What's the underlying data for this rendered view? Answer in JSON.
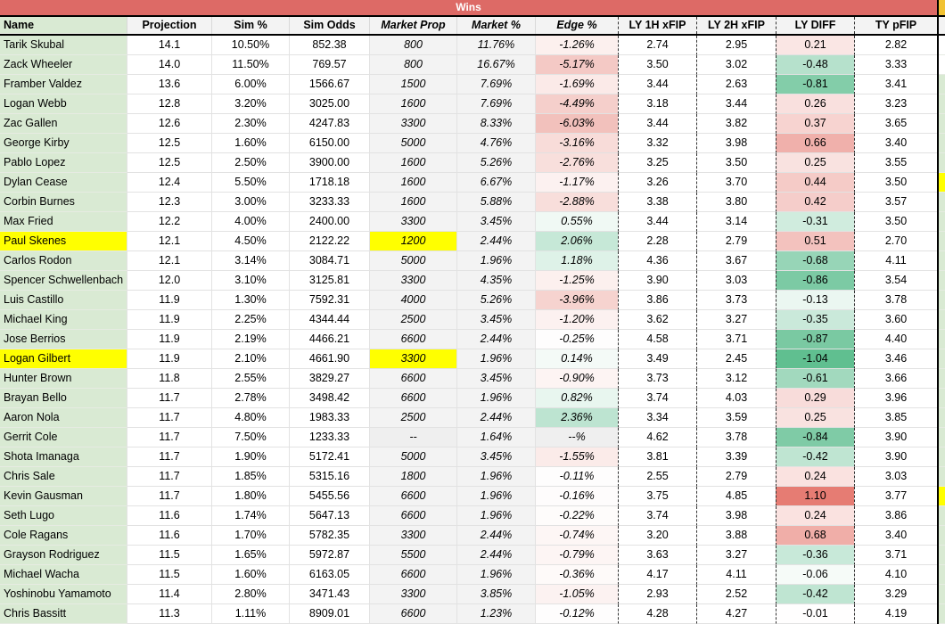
{
  "banner": {
    "title": "Wins"
  },
  "colors": {
    "banner_bg": "#dd6a66",
    "header_bg": "#f3f3f3",
    "name_green": "#d9ead3",
    "highlight_yellow": "#ffff00",
    "market_col_gray": "#f3f3f3",
    "na_gray": "#efefef",
    "adjacent_banner_gold": "#f1c232",
    "diff_red_max": "#e67c73",
    "diff_green_max": "#57bb8a"
  },
  "columns": [
    {
      "id": "name",
      "label": "Name"
    },
    {
      "id": "projection",
      "label": "Projection"
    },
    {
      "id": "sim_pct",
      "label": "Sim %"
    },
    {
      "id": "sim_odds",
      "label": "Sim Odds"
    },
    {
      "id": "market_prop",
      "label": "Market Prop"
    },
    {
      "id": "market_pct",
      "label": "Market %"
    },
    {
      "id": "edge_pct",
      "label": "Edge %"
    },
    {
      "id": "ly_1h_xfip",
      "label": "LY 1H xFIP"
    },
    {
      "id": "ly_2h_xfip",
      "label": "LY 2H xFIP"
    },
    {
      "id": "ly_diff",
      "label": "LY DIFF"
    },
    {
      "id": "ty_pfip",
      "label": "TY pFIP"
    }
  ],
  "rows": [
    {
      "name": "Tarik Skubal",
      "projection": "14.1",
      "sim_pct": "10.50%",
      "sim_odds": "852.38",
      "market_prop": "800",
      "market_pct": "11.76%",
      "edge_pct": "-1.26%",
      "ly_1h_xfip": "2.74",
      "ly_2h_xfip": "2.95",
      "ly_diff": "0.21",
      "ty_pfip": "2.82",
      "edge_bg": "#fcf0ee",
      "diff_bg": "#fae6e4"
    },
    {
      "name": "Zack Wheeler",
      "projection": "14.0",
      "sim_pct": "11.50%",
      "sim_odds": "769.57",
      "market_prop": "800",
      "market_pct": "16.67%",
      "edge_pct": "-5.17%",
      "ly_1h_xfip": "3.50",
      "ly_2h_xfip": "3.02",
      "ly_diff": "-0.48",
      "ty_pfip": "3.33",
      "edge_bg": "#f4c9c5",
      "diff_bg": "#b6e1cc"
    },
    {
      "name": "Framber Valdez",
      "projection": "13.6",
      "sim_pct": "6.00%",
      "sim_odds": "1566.67",
      "market_prop": "1500",
      "market_pct": "7.69%",
      "edge_pct": "-1.69%",
      "ly_1h_xfip": "3.44",
      "ly_2h_xfip": "2.63",
      "ly_diff": "-0.81",
      "ty_pfip": "3.41",
      "edge_bg": "#fbeae8",
      "diff_bg": "#83cda9"
    },
    {
      "name": "Logan Webb",
      "projection": "12.8",
      "sim_pct": "3.20%",
      "sim_odds": "3025.00",
      "market_prop": "1600",
      "market_pct": "7.69%",
      "edge_pct": "-4.49%",
      "ly_1h_xfip": "3.18",
      "ly_2h_xfip": "3.44",
      "ly_diff": "0.26",
      "ty_pfip": "3.23",
      "edge_bg": "#f5cfcb",
      "diff_bg": "#f9e0de"
    },
    {
      "name": "Zac Gallen",
      "projection": "12.6",
      "sim_pct": "2.30%",
      "sim_odds": "4247.83",
      "market_prop": "3300",
      "market_pct": "8.33%",
      "edge_pct": "-6.03%",
      "ly_1h_xfip": "3.44",
      "ly_2h_xfip": "3.82",
      "ly_diff": "0.37",
      "ty_pfip": "3.65",
      "edge_bg": "#f2c1bc",
      "diff_bg": "#f7d3d0"
    },
    {
      "name": "George Kirby",
      "projection": "12.5",
      "sim_pct": "1.60%",
      "sim_odds": "6150.00",
      "market_prop": "5000",
      "market_pct": "4.76%",
      "edge_pct": "-3.16%",
      "ly_1h_xfip": "3.32",
      "ly_2h_xfip": "3.98",
      "ly_diff": "0.66",
      "ty_pfip": "3.40",
      "edge_bg": "#f8dcd9",
      "diff_bg": "#f0b0ab"
    },
    {
      "name": "Pablo Lopez",
      "projection": "12.5",
      "sim_pct": "2.50%",
      "sim_odds": "3900.00",
      "market_prop": "1600",
      "market_pct": "5.26%",
      "edge_pct": "-2.76%",
      "ly_1h_xfip": "3.25",
      "ly_2h_xfip": "3.50",
      "ly_diff": "0.25",
      "ty_pfip": "3.55",
      "edge_bg": "#f8dfdc",
      "diff_bg": "#f9e2e0"
    },
    {
      "name": "Dylan Cease",
      "projection": "12.4",
      "sim_pct": "5.50%",
      "sim_odds": "1718.18",
      "market_prop": "1600",
      "market_pct": "6.67%",
      "edge_pct": "-1.17%",
      "ly_1h_xfip": "3.26",
      "ly_2h_xfip": "3.70",
      "ly_diff": "0.44",
      "ty_pfip": "3.50",
      "edge_bg": "#fcf1f0",
      "diff_bg": "#f5cbc7"
    },
    {
      "name": "Corbin Burnes",
      "projection": "12.3",
      "sim_pct": "3.00%",
      "sim_odds": "3233.33",
      "market_prop": "1600",
      "market_pct": "5.88%",
      "edge_pct": "-2.88%",
      "ly_1h_xfip": "3.38",
      "ly_2h_xfip": "3.80",
      "ly_diff": "0.42",
      "ty_pfip": "3.57",
      "edge_bg": "#f8dedb",
      "diff_bg": "#f5cdca"
    },
    {
      "name": "Max Fried",
      "projection": "12.2",
      "sim_pct": "4.00%",
      "sim_odds": "2400.00",
      "market_prop": "3300",
      "market_pct": "3.45%",
      "edge_pct": "0.55%",
      "ly_1h_xfip": "3.44",
      "ly_2h_xfip": "3.14",
      "ly_diff": "-0.31",
      "ty_pfip": "3.50",
      "edge_bg": "#f0f9f4",
      "diff_bg": "#d0ecde"
    },
    {
      "name": "Paul Skenes",
      "projection": "12.1",
      "sim_pct": "4.50%",
      "sim_odds": "2122.22",
      "market_prop": "1200",
      "market_pct": "2.44%",
      "edge_pct": "2.06%",
      "ly_1h_xfip": "2.28",
      "ly_2h_xfip": "2.79",
      "ly_diff": "0.51",
      "ty_pfip": "2.70",
      "edge_bg": "#c6e8d7",
      "diff_bg": "#f3c2be",
      "name_highlight": true,
      "prop_highlight": true
    },
    {
      "name": "Carlos Rodon",
      "projection": "12.1",
      "sim_pct": "3.14%",
      "sim_odds": "3084.71",
      "market_prop": "5000",
      "market_pct": "1.96%",
      "edge_pct": "1.18%",
      "ly_1h_xfip": "4.36",
      "ly_2h_xfip": "3.67",
      "ly_diff": "-0.68",
      "ty_pfip": "4.11",
      "edge_bg": "#def2e8",
      "diff_bg": "#97d5b7"
    },
    {
      "name": "Spencer Schwellenbach",
      "projection": "12.0",
      "sim_pct": "3.10%",
      "sim_odds": "3125.81",
      "market_prop": "3300",
      "market_pct": "4.35%",
      "edge_pct": "-1.25%",
      "ly_1h_xfip": "3.90",
      "ly_2h_xfip": "3.03",
      "ly_diff": "-0.86",
      "ty_pfip": "3.54",
      "edge_bg": "#fcf0ee",
      "diff_bg": "#7ccaa4"
    },
    {
      "name": "Luis Castillo",
      "projection": "11.9",
      "sim_pct": "1.30%",
      "sim_odds": "7592.31",
      "market_prop": "4000",
      "market_pct": "5.26%",
      "edge_pct": "-3.96%",
      "ly_1h_xfip": "3.86",
      "ly_2h_xfip": "3.73",
      "ly_diff": "-0.13",
      "ty_pfip": "3.78",
      "edge_bg": "#f6d3cf",
      "diff_bg": "#ebf7f1"
    },
    {
      "name": "Michael King",
      "projection": "11.9",
      "sim_pct": "2.25%",
      "sim_odds": "4344.44",
      "market_prop": "2500",
      "market_pct": "3.45%",
      "edge_pct": "-1.20%",
      "ly_1h_xfip": "3.62",
      "ly_2h_xfip": "3.27",
      "ly_diff": "-0.35",
      "ty_pfip": "3.60",
      "edge_bg": "#fcf1f0",
      "diff_bg": "#cae9da"
    },
    {
      "name": "Jose Berrios",
      "projection": "11.9",
      "sim_pct": "2.19%",
      "sim_odds": "4466.21",
      "market_prop": "6600",
      "market_pct": "2.44%",
      "edge_pct": "-0.25%",
      "ly_1h_xfip": "4.58",
      "ly_2h_xfip": "3.71",
      "ly_diff": "-0.87",
      "ty_pfip": "4.40",
      "edge_bg": "#fefdfd",
      "diff_bg": "#7ac9a2"
    },
    {
      "name": "Logan Gilbert",
      "projection": "11.9",
      "sim_pct": "2.10%",
      "sim_odds": "4661.90",
      "market_prop": "3300",
      "market_pct": "1.96%",
      "edge_pct": "0.14%",
      "ly_1h_xfip": "3.49",
      "ly_2h_xfip": "2.45",
      "ly_diff": "-1.04",
      "ty_pfip": "3.46",
      "edge_bg": "#f4faf7",
      "diff_bg": "#60bf90",
      "name_highlight": true,
      "prop_highlight": true
    },
    {
      "name": "Hunter Brown",
      "projection": "11.8",
      "sim_pct": "2.55%",
      "sim_odds": "3829.27",
      "market_prop": "6600",
      "market_pct": "3.45%",
      "edge_pct": "-0.90%",
      "ly_1h_xfip": "3.73",
      "ly_2h_xfip": "3.12",
      "ly_diff": "-0.61",
      "ty_pfip": "3.66",
      "edge_bg": "#fdf4f3",
      "diff_bg": "#a2d9be"
    },
    {
      "name": "Brayan Bello",
      "projection": "11.7",
      "sim_pct": "2.78%",
      "sim_odds": "3498.42",
      "market_prop": "6600",
      "market_pct": "1.96%",
      "edge_pct": "0.82%",
      "ly_1h_xfip": "3.74",
      "ly_2h_xfip": "4.03",
      "ly_diff": "0.29",
      "ty_pfip": "3.96",
      "edge_bg": "#e8f6ef",
      "diff_bg": "#f8dcda"
    },
    {
      "name": "Aaron Nola",
      "projection": "11.7",
      "sim_pct": "4.80%",
      "sim_odds": "1983.33",
      "market_prop": "2500",
      "market_pct": "2.44%",
      "edge_pct": "2.36%",
      "ly_1h_xfip": "3.34",
      "ly_2h_xfip": "3.59",
      "ly_diff": "0.25",
      "ty_pfip": "3.85",
      "edge_bg": "#bde4d1",
      "diff_bg": "#f9e2e0"
    },
    {
      "name": "Gerrit Cole",
      "projection": "11.7",
      "sim_pct": "7.50%",
      "sim_odds": "1233.33",
      "market_prop": "--",
      "market_pct": "1.64%",
      "edge_pct": "--%",
      "ly_1h_xfip": "4.62",
      "ly_2h_xfip": "3.78",
      "ly_diff": "-0.84",
      "ty_pfip": "3.90",
      "edge_bg": "#efefef",
      "diff_bg": "#7fcba6",
      "prop_bg": "#efefef"
    },
    {
      "name": "Shota Imanaga",
      "projection": "11.7",
      "sim_pct": "1.90%",
      "sim_odds": "5172.41",
      "market_prop": "5000",
      "market_pct": "3.45%",
      "edge_pct": "-1.55%",
      "ly_1h_xfip": "3.81",
      "ly_2h_xfip": "3.39",
      "ly_diff": "-0.42",
      "ty_pfip": "3.90",
      "edge_bg": "#fbebe9",
      "diff_bg": "#bfe5d2"
    },
    {
      "name": "Chris Sale",
      "projection": "11.7",
      "sim_pct": "1.85%",
      "sim_odds": "5315.16",
      "market_prop": "1800",
      "market_pct": "1.96%",
      "edge_pct": "-0.11%",
      "ly_1h_xfip": "2.55",
      "ly_2h_xfip": "2.79",
      "ly_diff": "0.24",
      "ty_pfip": "3.03",
      "edge_bg": "#fefdfd",
      "diff_bg": "#fae2e0"
    },
    {
      "name": "Kevin Gausman",
      "projection": "11.7",
      "sim_pct": "1.80%",
      "sim_odds": "5455.56",
      "market_prop": "6600",
      "market_pct": "1.96%",
      "edge_pct": "-0.16%",
      "ly_1h_xfip": "3.75",
      "ly_2h_xfip": "4.85",
      "ly_diff": "1.10",
      "ty_pfip": "3.77",
      "edge_bg": "#fefcfc",
      "diff_bg": "#e67c73"
    },
    {
      "name": "Seth Lugo",
      "projection": "11.6",
      "sim_pct": "1.74%",
      "sim_odds": "5647.13",
      "market_prop": "6600",
      "market_pct": "1.96%",
      "edge_pct": "-0.22%",
      "ly_1h_xfip": "3.74",
      "ly_2h_xfip": "3.98",
      "ly_diff": "0.24",
      "ty_pfip": "3.86",
      "edge_bg": "#fefcfb",
      "diff_bg": "#fae2e0"
    },
    {
      "name": "Cole Ragans",
      "projection": "11.6",
      "sim_pct": "1.70%",
      "sim_odds": "5782.35",
      "market_prop": "3300",
      "market_pct": "2.44%",
      "edge_pct": "-0.74%",
      "ly_1h_xfip": "3.20",
      "ly_2h_xfip": "3.88",
      "ly_diff": "0.68",
      "ty_pfip": "3.40",
      "edge_bg": "#fdf6f5",
      "diff_bg": "#f0aea8"
    },
    {
      "name": "Grayson Rodriguez",
      "projection": "11.5",
      "sim_pct": "1.65%",
      "sim_odds": "5972.87",
      "market_prop": "5500",
      "market_pct": "2.44%",
      "edge_pct": "-0.79%",
      "ly_1h_xfip": "3.63",
      "ly_2h_xfip": "3.27",
      "ly_diff": "-0.36",
      "ty_pfip": "3.71",
      "edge_bg": "#fdf5f4",
      "diff_bg": "#c8e9d9"
    },
    {
      "name": "Michael Wacha",
      "projection": "11.5",
      "sim_pct": "1.60%",
      "sim_odds": "6163.05",
      "market_prop": "6600",
      "market_pct": "1.96%",
      "edge_pct": "-0.36%",
      "ly_1h_xfip": "4.17",
      "ly_2h_xfip": "4.11",
      "ly_diff": "-0.06",
      "ty_pfip": "4.10",
      "edge_bg": "#fefaf9",
      "diff_bg": "#f6fbf8"
    },
    {
      "name": "Yoshinobu Yamamoto",
      "projection": "11.4",
      "sim_pct": "2.80%",
      "sim_odds": "3471.43",
      "market_prop": "3300",
      "market_pct": "3.85%",
      "edge_pct": "-1.05%",
      "ly_1h_xfip": "2.93",
      "ly_2h_xfip": "2.52",
      "ly_diff": "-0.42",
      "ty_pfip": "3.29",
      "edge_bg": "#fcf2f1",
      "diff_bg": "#bfe5d2"
    },
    {
      "name": "Chris Bassitt",
      "projection": "11.3",
      "sim_pct": "1.11%",
      "sim_odds": "8909.01",
      "market_prop": "6600",
      "market_pct": "1.23%",
      "edge_pct": "-0.12%",
      "ly_1h_xfip": "4.28",
      "ly_2h_xfip": "4.27",
      "ly_diff": "-0.01",
      "ty_pfip": "4.19",
      "edge_bg": "#fefdfd",
      "diff_bg": "#fffefe"
    }
  ],
  "adjacent_sliver": {
    "white_rows": [
      1,
      2
    ],
    "yellow_rows": [
      8,
      24
    ]
  }
}
